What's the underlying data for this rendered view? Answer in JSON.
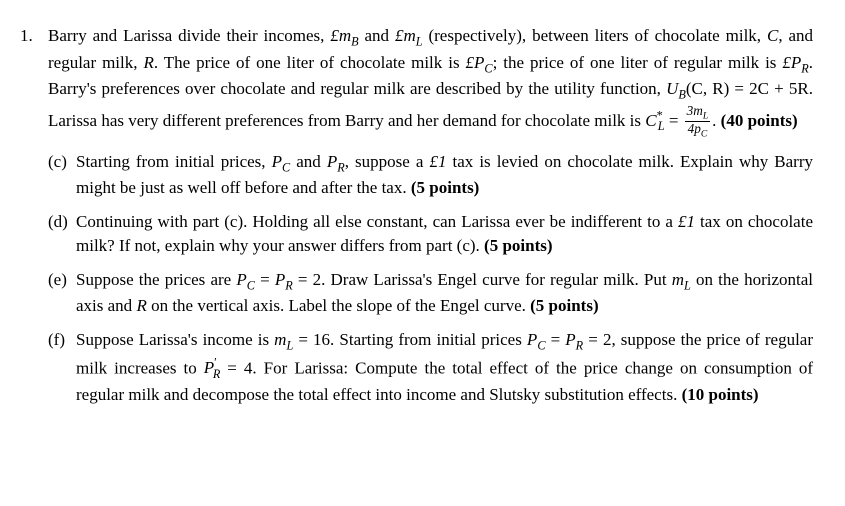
{
  "problem": {
    "number": "1.",
    "intro_parts": {
      "t1": "Barry and Larissa divide their incomes, ",
      "mB": "£m",
      "mB_sub": "B",
      "t2": " and ",
      "mL": "£m",
      "mL_sub": "L",
      "t3": " (respectively), between liters of chocolate milk, ",
      "C": "C",
      "t4": ", and regular milk, ",
      "R": "R",
      "t5": ". The price of one liter of chocolate milk is ",
      "PC": "£P",
      "PC_sub": "C",
      "t6": "; the price of one liter of regular milk is ",
      "PR": "£P",
      "PR_sub": "R",
      "t7": ". Barry's preferences over chocolate and regular milk are described by the utility function, ",
      "UB": "U",
      "UB_sub": "B",
      "UB_args": "(C, R) = 2C + 5R",
      "t8": ". Larissa has very different preferences from Barry and her demand for chocolate milk is ",
      "CL": "C",
      "CL_sup": "*",
      "CL_sub": "L",
      "eq": " = ",
      "frac_top1": "3m",
      "frac_top1_sub": "L",
      "frac_bot1": "4p",
      "frac_bot1_sub": "C",
      "t9": ". ",
      "points": "(40 points)"
    }
  },
  "c": {
    "label": "(c)",
    "t1": "Starting from initial prices, ",
    "PC": "P",
    "PC_sub": "C",
    "t2": " and ",
    "PR": "P",
    "PR_sub": "R",
    "t3": ", suppose a ",
    "tax": "£1",
    "t4": " tax is levied on chocolate milk. Explain why Barry might be just as well off before and after the tax. ",
    "points": "(5 points)"
  },
  "d": {
    "label": "(d)",
    "t1": " Continuing with part (c). Holding all else constant, can Larissa ever be indifferent to a ",
    "tax": "£1",
    "t2": " tax on chocolate milk? If not, explain why your answer differs from part (c). ",
    "points": "(5 points)"
  },
  "e": {
    "label": "(e)",
    "t1": "Suppose the prices are ",
    "PC": "P",
    "PC_sub": "C",
    "eq1": " = ",
    "PR": "P",
    "PR_sub": "R",
    "eq2": " = 2",
    "t2": ". Draw Larissa's Engel curve for regular milk. Put ",
    "mL": "m",
    "mL_sub": "L",
    "t3": " on the horizontal axis and ",
    "R": "R",
    "t4": " on the vertical axis. Label the slope of the Engel curve. ",
    "points": "(5 points)"
  },
  "f": {
    "label": "(f)",
    "t1": "Suppose Larissa's income is ",
    "mL": "m",
    "mL_sub": "L",
    "eq1": " = 16",
    "t2": ". Starting from initial prices ",
    "PC": "P",
    "PC_sub": "C",
    "eq2": " = ",
    "PR": "P",
    "PR_sub": "R",
    "eq3": " = 2",
    "t3": ", suppose the price of regular milk increases to ",
    "PRp": "P",
    "PRp_sup": "′",
    "PRp_sub": "R",
    "eq4": " = 4",
    "t4": ". For Larissa: Compute the total effect of the price change on consumption of regular milk and decompose the total effect into income and Slutsky substitution effects. ",
    "points": "(10 points)"
  }
}
